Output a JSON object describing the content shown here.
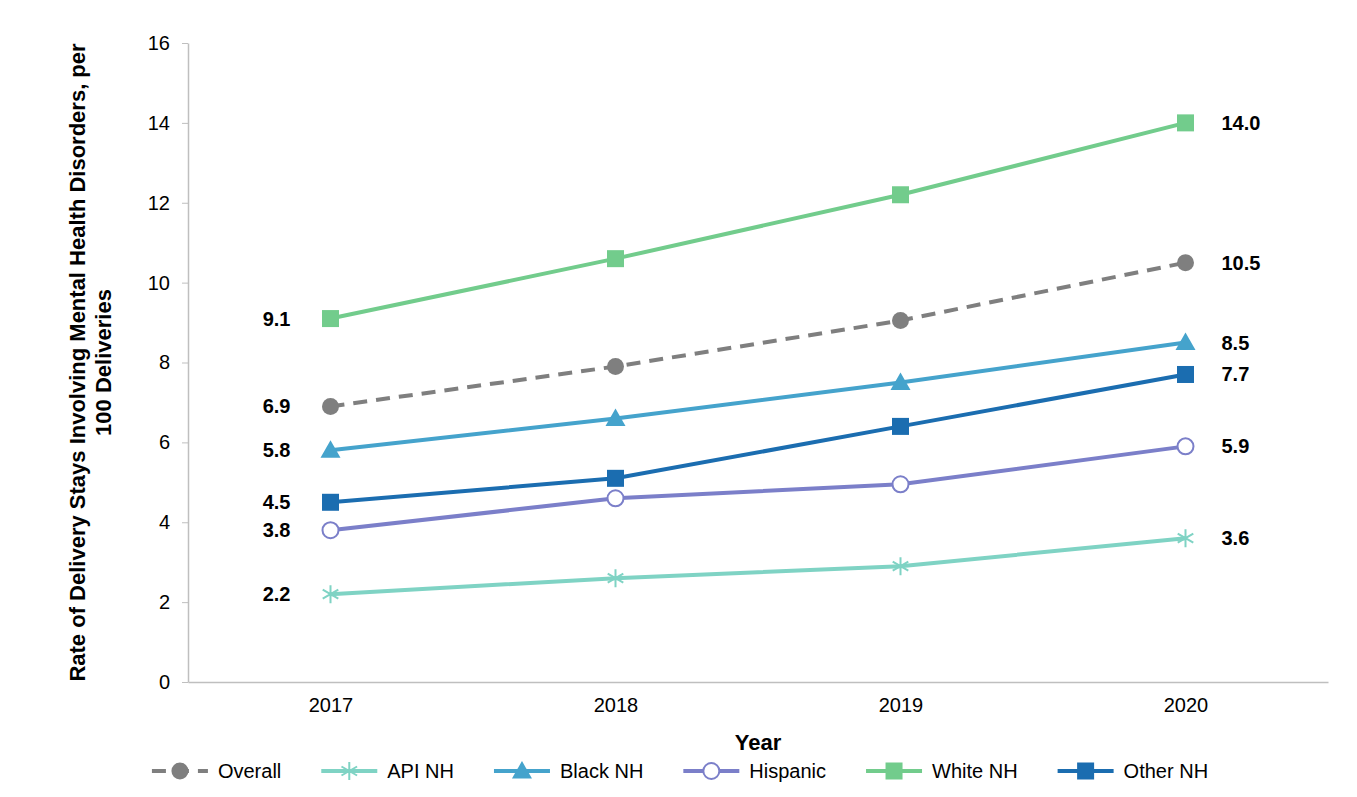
{
  "chart_data": {
    "type": "line",
    "x_label": "Year",
    "y_label": "Rate of Delivery Stays Involving Mental Health Disorders, per 100 Deliveries",
    "categories": [
      "2017",
      "2018",
      "2019",
      "2020"
    ],
    "ylim": [
      0,
      16
    ],
    "yticks": [
      0,
      2,
      4,
      6,
      8,
      10,
      12,
      14,
      16
    ],
    "grid": false,
    "legend": "bottom",
    "data_labels": true,
    "series": [
      {
        "name": "Overall",
        "color": "#7f7f7f",
        "marker": "circle",
        "line_style": "dashed",
        "values": [
          6.9,
          7.9,
          9.05,
          10.5
        ],
        "value_labels": [
          "6.9",
          null,
          null,
          "10.5"
        ]
      },
      {
        "name": "API NH",
        "color": "#7fd3c4",
        "marker": "asterisk",
        "line_style": "solid",
        "values": [
          2.2,
          2.6,
          2.9,
          3.6
        ],
        "value_labels": [
          "2.2",
          null,
          null,
          "3.6"
        ]
      },
      {
        "name": "Black NH",
        "color": "#45a3cc",
        "marker": "triangle",
        "line_style": "solid",
        "values": [
          5.8,
          6.6,
          7.5,
          8.5
        ],
        "value_labels": [
          "5.8",
          null,
          null,
          "8.5"
        ]
      },
      {
        "name": "Hispanic",
        "color": "#7b7fc9",
        "marker": "circle-open",
        "line_style": "solid",
        "values": [
          3.8,
          4.6,
          4.95,
          5.9
        ],
        "value_labels": [
          "3.8",
          null,
          null,
          "5.9"
        ]
      },
      {
        "name": "White NH",
        "color": "#72cc8c",
        "marker": "square",
        "line_style": "solid",
        "values": [
          9.1,
          10.6,
          12.2,
          14.0
        ],
        "value_labels": [
          "9.1",
          null,
          null,
          "14.0"
        ]
      },
      {
        "name": "Other NH",
        "color": "#1b6db0",
        "marker": "square",
        "line_style": "solid",
        "values": [
          4.5,
          5.1,
          6.4,
          7.7
        ],
        "value_labels": [
          "4.5",
          null,
          null,
          "7.7"
        ]
      }
    ]
  }
}
